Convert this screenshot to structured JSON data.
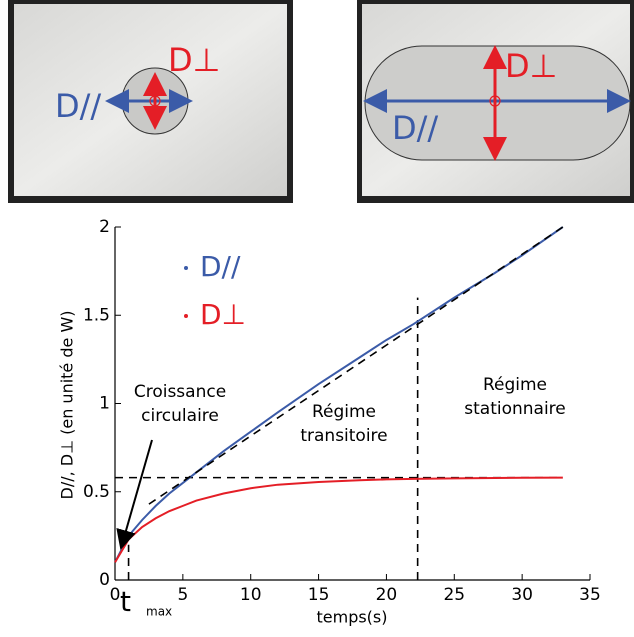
{
  "photos": {
    "left": {
      "perp_label": "D⊥",
      "par_label": "D//"
    },
    "right": {
      "perp_label": "D⊥",
      "par_label": "D//"
    }
  },
  "chart_data": {
    "type": "line",
    "x_label": "temps(s)",
    "y_label": "D//, D⊥ (en unité de W)",
    "x": [
      0,
      1,
      2,
      3,
      4,
      5,
      6,
      8,
      10,
      12,
      15,
      18,
      20,
      22,
      25,
      28,
      30,
      33
    ],
    "series": [
      {
        "name": "D//",
        "color": "#3b5ba8",
        "values": [
          0.1,
          0.25,
          0.34,
          0.42,
          0.49,
          0.55,
          0.61,
          0.73,
          0.84,
          0.95,
          1.11,
          1.26,
          1.36,
          1.45,
          1.6,
          1.74,
          1.84,
          2.0
        ]
      },
      {
        "name": "D⊥",
        "color": "#e41e26",
        "values": [
          0.1,
          0.23,
          0.3,
          0.35,
          0.39,
          0.42,
          0.45,
          0.49,
          0.52,
          0.54,
          0.555,
          0.565,
          0.57,
          0.573,
          0.576,
          0.578,
          0.579,
          0.58
        ]
      }
    ],
    "asymptote": {
      "x": [
        2.5,
        33
      ],
      "values": [
        0.43,
        2.0
      ]
    },
    "hlines": [
      0.58
    ],
    "vlines": [
      22.3,
      1
    ],
    "xlim": [
      0,
      35
    ],
    "xticks": [
      0,
      5,
      10,
      15,
      20,
      25,
      30,
      35
    ],
    "ylim": [
      0,
      2
    ],
    "yticks": [
      0,
      0.5,
      1,
      1.5,
      2
    ],
    "tmax_label": {
      "t": "t",
      "sub": "max"
    },
    "annotations": [
      {
        "lines": [
          "Croissance",
          "circulaire"
        ]
      },
      {
        "lines": [
          "Régime",
          "transitoire"
        ]
      },
      {
        "lines": [
          "Régime",
          "stationnaire"
        ]
      }
    ]
  }
}
